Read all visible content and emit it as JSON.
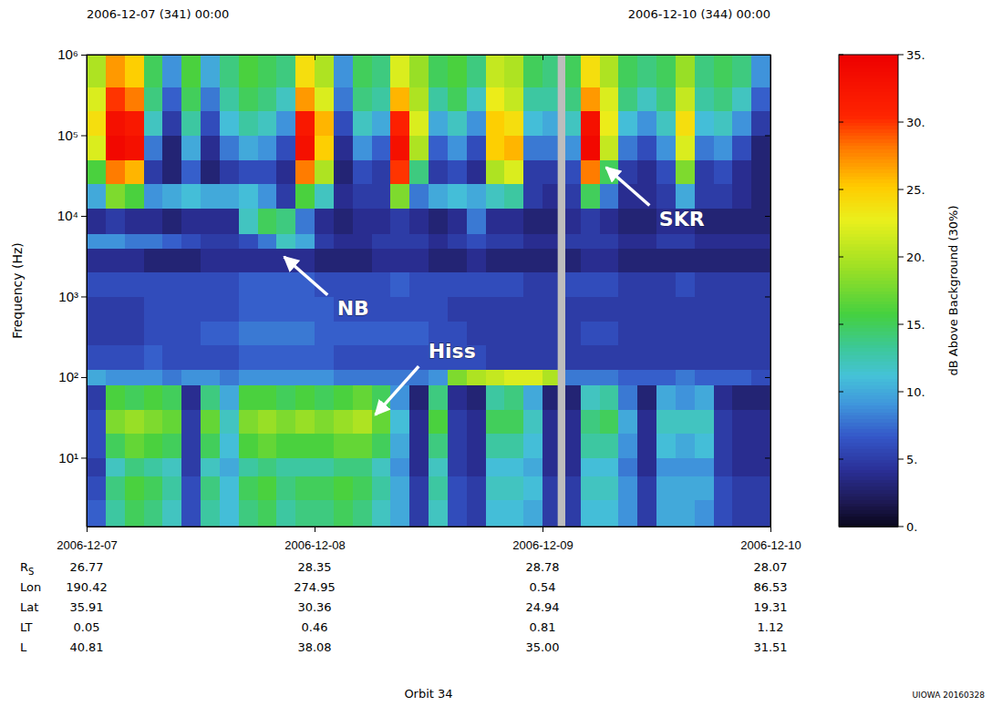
{
  "chart_data": {
    "type": "heatmap",
    "header_left": "2006-12-07 (341) 00:00",
    "header_right": "2006-12-10 (344) 00:00",
    "y_label": "Frequency (Hz)",
    "log": "y",
    "xlim": [
      0,
      72
    ],
    "xticks": [
      {
        "value": 0,
        "label": "2006-12-07"
      },
      {
        "value": 24,
        "label": "2006-12-08"
      },
      {
        "value": 48,
        "label": "2006-12-09"
      },
      {
        "value": 72,
        "label": "2006-12-10"
      }
    ],
    "ylim": [
      1.4,
      1000000
    ],
    "yticks": [
      {
        "value": 10,
        "label": "10¹"
      },
      {
        "value": 100,
        "label": "10²"
      },
      {
        "value": 1000,
        "label": "10³"
      },
      {
        "value": 10000,
        "label": "10⁴"
      },
      {
        "value": 100000,
        "label": "10⁵"
      },
      {
        "value": 1000000,
        "label": "10⁶"
      }
    ],
    "x_edges": [
      0,
      2,
      4,
      6,
      8,
      10,
      12,
      14,
      16,
      18,
      20,
      22,
      24,
      26,
      28,
      30,
      32,
      34,
      36,
      38,
      40,
      42,
      44,
      46,
      48,
      50,
      52,
      54,
      56,
      58,
      60,
      62,
      64,
      66,
      68,
      70,
      72
    ],
    "y_edges": [
      1.4,
      3,
      6,
      10,
      20,
      40,
      80,
      125,
      250,
      500,
      1000,
      2000,
      4000,
      6000,
      12500,
      25000,
      50000,
      100000,
      200000,
      400000,
      1000000
    ],
    "cells": [
      [
        7,
        13,
        15,
        14,
        12,
        6,
        13,
        11,
        14,
        15,
        13,
        14,
        14,
        15,
        14,
        12,
        10,
        5,
        12,
        6,
        5,
        11,
        11,
        10,
        5,
        5,
        11,
        11,
        9,
        5,
        10,
        10,
        9,
        6,
        5,
        5
      ],
      [
        6,
        14,
        16,
        15,
        13,
        6,
        14,
        11,
        15,
        16,
        14,
        15,
        15,
        16,
        15,
        13,
        10,
        5,
        13,
        6,
        5,
        12,
        12,
        11,
        5,
        5,
        12,
        12,
        9,
        5,
        10,
        10,
        10,
        6,
        5,
        5
      ],
      [
        5,
        12,
        14,
        13,
        12,
        5,
        12,
        10,
        13,
        14,
        13,
        13,
        13,
        14,
        14,
        12,
        9,
        4,
        12,
        5,
        4,
        11,
        11,
        10,
        4,
        4,
        11,
        11,
        8,
        4,
        9,
        9,
        9,
        5,
        4,
        4
      ],
      [
        6,
        15,
        17,
        16,
        15,
        5,
        15,
        11,
        16,
        17,
        16,
        16,
        16,
        17,
        17,
        15,
        10,
        4,
        14,
        5,
        4,
        13,
        13,
        11,
        4,
        4,
        13,
        13,
        9,
        4,
        11,
        10,
        11,
        5,
        4,
        4
      ],
      [
        6,
        18,
        19,
        18,
        17,
        5,
        17,
        12,
        18,
        19,
        18,
        19,
        18,
        19,
        20,
        17,
        11,
        4,
        16,
        5,
        4,
        15,
        15,
        12,
        4,
        4,
        14,
        15,
        10,
        4,
        12,
        12,
        12,
        5,
        4,
        4
      ],
      [
        5,
        16,
        15,
        16,
        15,
        4,
        14,
        10,
        16,
        16,
        15,
        16,
        15,
        16,
        17,
        15,
        9,
        3,
        14,
        4,
        3,
        13,
        14,
        10,
        3,
        3,
        12,
        13,
        8,
        3,
        10,
        9,
        10,
        4,
        3,
        3
      ],
      [
        10,
        9,
        9,
        9,
        8,
        9,
        9,
        8,
        9,
        9,
        9,
        9,
        9,
        8,
        8,
        8,
        8,
        8,
        9,
        18,
        20,
        21,
        22,
        22,
        20,
        8,
        8,
        8,
        7,
        7,
        7,
        8,
        7,
        7,
        7,
        6
      ],
      [
        6,
        6,
        6,
        7,
        6,
        6,
        6,
        6,
        7,
        7,
        7,
        7,
        7,
        6,
        6,
        6,
        6,
        6,
        6,
        6,
        6,
        5,
        5,
        5,
        5,
        5,
        5,
        5,
        5,
        5,
        5,
        5,
        5,
        5,
        5,
        5
      ],
      [
        5,
        5,
        5,
        6,
        6,
        6,
        7,
        7,
        8,
        8,
        8,
        8,
        7,
        7,
        7,
        7,
        7,
        7,
        6,
        6,
        5,
        5,
        5,
        5,
        5,
        5,
        6,
        6,
        5,
        5,
        5,
        5,
        5,
        5,
        5,
        5
      ],
      [
        5,
        5,
        5,
        6,
        6,
        6,
        6,
        6,
        7,
        7,
        7,
        7,
        7,
        6,
        6,
        6,
        6,
        6,
        6,
        5,
        5,
        5,
        5,
        5,
        5,
        5,
        5,
        5,
        5,
        5,
        5,
        5,
        5,
        5,
        5,
        5
      ],
      [
        6,
        6,
        6,
        6,
        6,
        6,
        6,
        6,
        7,
        7,
        7,
        7,
        6,
        6,
        6,
        6,
        7,
        6,
        6,
        6,
        6,
        6,
        6,
        5,
        5,
        6,
        6,
        6,
        5,
        5,
        5,
        6,
        5,
        5,
        5,
        5
      ],
      [
        4,
        4,
        4,
        3,
        3,
        3,
        4,
        4,
        4,
        4,
        4,
        4,
        3,
        3,
        3,
        4,
        4,
        4,
        3,
        3,
        4,
        3,
        3,
        3,
        3,
        3,
        4,
        4,
        3,
        3,
        3,
        3,
        3,
        3,
        3,
        3
      ],
      [
        9,
        9,
        8,
        8,
        7,
        6,
        5,
        5,
        6,
        8,
        12,
        10,
        5,
        4,
        4,
        5,
        5,
        5,
        4,
        5,
        6,
        5,
        5,
        4,
        4,
        5,
        5,
        5,
        4,
        4,
        5,
        5,
        4,
        4,
        4,
        4
      ],
      [
        4,
        5,
        4,
        4,
        3,
        4,
        4,
        4,
        12,
        15,
        14,
        8,
        4,
        3,
        4,
        4,
        5,
        4,
        3,
        4,
        8,
        4,
        4,
        3,
        3,
        4,
        5,
        4,
        3,
        3,
        4,
        4,
        3,
        3,
        3,
        3
      ],
      [
        10,
        18,
        16,
        9,
        10,
        11,
        10,
        10,
        11,
        9,
        5,
        16,
        12,
        4,
        5,
        5,
        18,
        8,
        10,
        11,
        10,
        12,
        13,
        5,
        4,
        5,
        15,
        8,
        4,
        4,
        5,
        10,
        5,
        5,
        4,
        3
      ],
      [
        16,
        28,
        26,
        5,
        3,
        7,
        3,
        5,
        6,
        6,
        4,
        28,
        20,
        3,
        6,
        5,
        30,
        14,
        5,
        6,
        4,
        20,
        22,
        5,
        5,
        6,
        28,
        15,
        5,
        4,
        6,
        18,
        5,
        6,
        4,
        3
      ],
      [
        22,
        34,
        33,
        8,
        3,
        10,
        4,
        8,
        10,
        9,
        6,
        33,
        25,
        4,
        9,
        7,
        33,
        20,
        7,
        9,
        6,
        25,
        26,
        8,
        8,
        9,
        34,
        21,
        8,
        6,
        9,
        22,
        8,
        9,
        6,
        3
      ],
      [
        24,
        33,
        32,
        12,
        5,
        13,
        6,
        11,
        13,
        12,
        9,
        32,
        26,
        6,
        12,
        10,
        31,
        22,
        10,
        12,
        9,
        25,
        24,
        11,
        10,
        12,
        33,
        23,
        11,
        9,
        12,
        24,
        11,
        12,
        9,
        5
      ],
      [
        22,
        30,
        28,
        14,
        7,
        15,
        8,
        13,
        15,
        14,
        12,
        27,
        22,
        8,
        14,
        13,
        26,
        20,
        13,
        15,
        12,
        23,
        21,
        13,
        13,
        14,
        27,
        22,
        14,
        12,
        14,
        21,
        13,
        14,
        12,
        7
      ],
      [
        20,
        27,
        25,
        15,
        9,
        16,
        10,
        14,
        16,
        15,
        14,
        24,
        20,
        9,
        15,
        14,
        22,
        19,
        15,
        16,
        14,
        21,
        20,
        15,
        14,
        15,
        24,
        20,
        15,
        14,
        15,
        19,
        14,
        15,
        14,
        9
      ]
    ],
    "gaps": [
      [
        49.6,
        50.4
      ]
    ],
    "colorbar": {
      "label": "dB Above Background (30%)",
      "range": [
        0,
        35
      ],
      "ticks": [
        {
          "value": 0,
          "label": "0."
        },
        {
          "value": 5,
          "label": "5."
        },
        {
          "value": 10,
          "label": "10."
        },
        {
          "value": 15,
          "label": "15."
        },
        {
          "value": 20,
          "label": "20."
        },
        {
          "value": 25,
          "label": "25."
        },
        {
          "value": 30,
          "label": "30."
        },
        {
          "value": 35,
          "label": "35."
        }
      ]
    },
    "annotations": [
      {
        "text": "SKR",
        "x": 54.7,
        "y": 40000
      },
      {
        "text": "NB",
        "x": 20.8,
        "y": 3100
      },
      {
        "text": "Hiss",
        "x": 30.4,
        "y": 34
      }
    ],
    "ephemeris": [
      {
        "label": "R",
        "subscript": "S",
        "values": [
          "26.77",
          "28.35",
          "28.78",
          "28.07"
        ]
      },
      {
        "label": "Lon",
        "values": [
          "190.42",
          "274.95",
          "0.54",
          "86.53"
        ]
      },
      {
        "label": "Lat",
        "values": [
          "35.91",
          "30.36",
          "24.94",
          "19.31"
        ]
      },
      {
        "label": "LT",
        "values": [
          "0.05",
          "0.46",
          "0.81",
          "1.12"
        ]
      },
      {
        "label": "L",
        "values": [
          "40.81",
          "38.08",
          "35.00",
          "31.51"
        ]
      }
    ],
    "footer": "Orbit 34",
    "credit": "UIOWA 20160328"
  }
}
